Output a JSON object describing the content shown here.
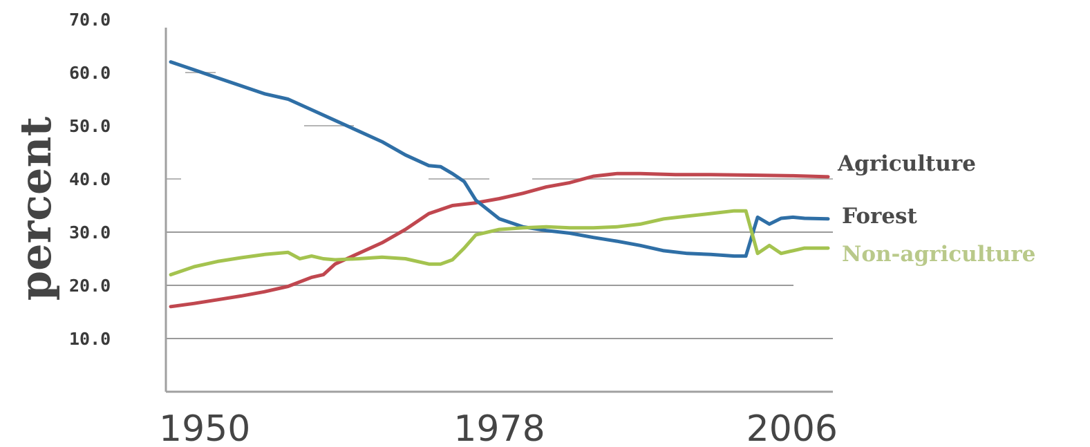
{
  "chart_data": {
    "type": "line",
    "title": "",
    "xlabel": "",
    "ylabel": "percent",
    "xlim": [
      1950,
      2006
    ],
    "ylim": [
      0,
      70
    ],
    "xticks": [
      "1950",
      "1978",
      "2006"
    ],
    "yticks": [
      "10.0",
      "20.0",
      "30.0",
      "40.0",
      "50.0",
      "60.0",
      "70.0"
    ],
    "grid": "partial horizontal",
    "legend_position": "right, labels at line ends",
    "series": [
      {
        "name": "Agriculture",
        "color": "#c0474f",
        "x": [
          1950,
          1952,
          1954,
          1956,
          1958,
          1960,
          1962,
          1963,
          1964,
          1966,
          1968,
          1970,
          1972,
          1974,
          1976,
          1978,
          1980,
          1982,
          1984,
          1986,
          1988,
          1990,
          1993,
          1996,
          2000,
          2003,
          2006
        ],
        "y": [
          16.0,
          16.6,
          17.3,
          18.0,
          18.8,
          19.8,
          21.5,
          22.0,
          24.0,
          26.0,
          28.0,
          30.5,
          33.5,
          35.0,
          35.5,
          36.3,
          37.3,
          38.5,
          39.3,
          40.5,
          41.0,
          41.0,
          40.8,
          40.8,
          40.7,
          40.6,
          40.4
        ]
      },
      {
        "name": "Forest",
        "color": "#2f6fa6",
        "x": [
          1950,
          1952,
          1954,
          1956,
          1958,
          1960,
          1962,
          1964,
          1966,
          1968,
          1970,
          1972,
          1973,
          1974,
          1975,
          1976,
          1978,
          1980,
          1982,
          1984,
          1986,
          1988,
          1990,
          1992,
          1994,
          1996,
          1998,
          1999,
          2000,
          2001,
          2002,
          2003,
          2004,
          2006
        ],
        "y": [
          62.0,
          60.5,
          59.0,
          57.5,
          56.0,
          55.0,
          53.0,
          51.0,
          49.0,
          47.0,
          44.5,
          42.5,
          42.3,
          41.0,
          39.5,
          36.0,
          32.5,
          31.0,
          30.3,
          29.8,
          29.0,
          28.3,
          27.5,
          26.5,
          26.0,
          25.8,
          25.5,
          25.5,
          32.8,
          31.5,
          32.6,
          32.8,
          32.6,
          32.5
        ]
      },
      {
        "name": "Non-agriculture",
        "color": "#a4c34f",
        "x": [
          1950,
          1952,
          1954,
          1956,
          1958,
          1960,
          1961,
          1962,
          1963,
          1964,
          1966,
          1968,
          1970,
          1972,
          1973,
          1974,
          1975,
          1976,
          1978,
          1980,
          1982,
          1984,
          1986,
          1988,
          1990,
          1992,
          1994,
          1996,
          1998,
          1999,
          2000,
          2001,
          2002,
          2003,
          2004,
          2006
        ],
        "y": [
          22.0,
          23.5,
          24.5,
          25.2,
          25.8,
          26.2,
          25.0,
          25.5,
          25.0,
          24.8,
          25.0,
          25.3,
          25.0,
          24.0,
          24.0,
          24.8,
          27.0,
          29.5,
          30.5,
          30.8,
          31.0,
          30.8,
          30.8,
          31.0,
          31.5,
          32.5,
          33.0,
          33.5,
          34.0,
          34.0,
          26.0,
          27.5,
          26.0,
          26.5,
          27.0,
          27.0
        ]
      }
    ]
  }
}
